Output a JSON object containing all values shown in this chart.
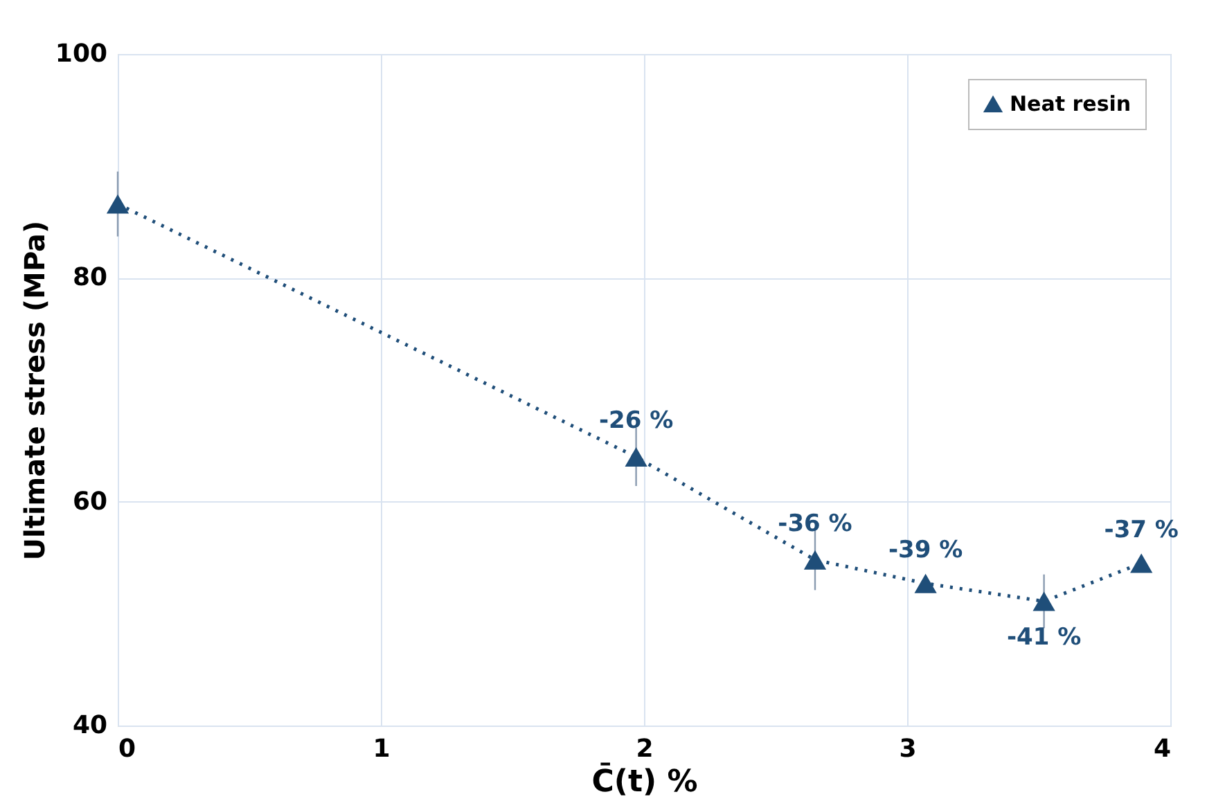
{
  "chart_data": {
    "type": "line",
    "xlabel": "C̄(t) %",
    "ylabel": "Ultimate stress (MPa)",
    "x": [
      0,
      1.97,
      2.65,
      3.07,
      3.52,
      3.89
    ],
    "series": [
      {
        "name": "Neat resin",
        "color": "#1f4e79",
        "values": [
          86.6,
          64.0,
          54.8,
          52.7,
          51.1,
          54.5
        ],
        "errors": [
          2.9,
          2.6,
          2.7,
          null,
          2.4,
          null
        ]
      }
    ],
    "annotations": [
      {
        "text": "-26 %",
        "x": 1.97,
        "y": 64.0
      },
      {
        "text": "-36 %",
        "x": 2.65,
        "y": 54.8
      },
      {
        "text": "-39 %",
        "x": 3.07,
        "y": 52.7
      },
      {
        "text": "-41 %",
        "x": 3.52,
        "y": 51.1
      },
      {
        "text": "-37 %",
        "x": 3.89,
        "y": 54.5
      }
    ],
    "xlim": [
      0,
      4
    ],
    "xticks": [
      0,
      1,
      2,
      3,
      4
    ],
    "ylim": [
      40,
      100
    ],
    "yticks": [
      40,
      60,
      80,
      100
    ],
    "grid": true,
    "legend": "top right",
    "marker": "triangle",
    "line_style": "dotted"
  }
}
